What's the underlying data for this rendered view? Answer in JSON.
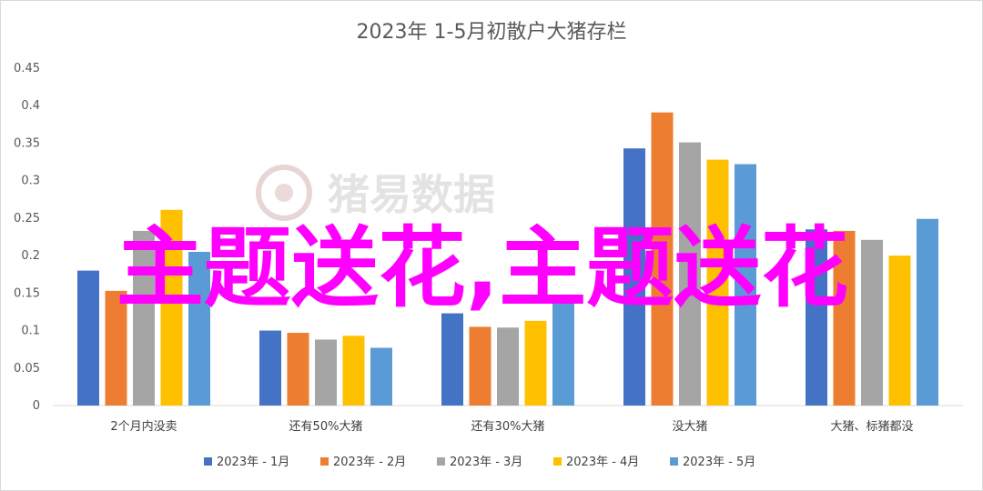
{
  "chart_data": {
    "type": "bar",
    "title": "2023年 1-5月初散户大猪存栏",
    "categories": [
      "2个月内没卖",
      "还有50%大猪",
      "还有30%大猪",
      "没大猪",
      "大猪、标猪都没"
    ],
    "series": [
      {
        "name": "2023年 - 1月",
        "color": "#4472c4",
        "values": [
          0.18,
          0.1,
          0.123,
          0.343,
          0.235
        ]
      },
      {
        "name": "2023年 - 2月",
        "color": "#ed7d31",
        "values": [
          0.153,
          0.097,
          0.105,
          0.391,
          0.233
        ]
      },
      {
        "name": "2023年 - 3月",
        "color": "#a5a5a5",
        "values": [
          0.233,
          0.088,
          0.104,
          0.351,
          0.221
        ]
      },
      {
        "name": "2023年 - 4月",
        "color": "#ffc000",
        "values": [
          0.261,
          0.093,
          0.113,
          0.328,
          0.2
        ]
      },
      {
        "name": "2023年 - 5月",
        "color": "#5b9bd5",
        "values": [
          0.205,
          0.077,
          0.148,
          0.322,
          0.249
        ]
      }
    ],
    "ylim": [
      0,
      0.45
    ],
    "yticks": [
      "0",
      "0.05",
      "0.1",
      "0.15",
      "0.2",
      "0.25",
      "0.3",
      "0.35",
      "0.4",
      "0.45"
    ],
    "grid": false,
    "legend_position": "bottom"
  },
  "watermark": "猪易数据",
  "overlay_text": "主题送花,主题送花"
}
